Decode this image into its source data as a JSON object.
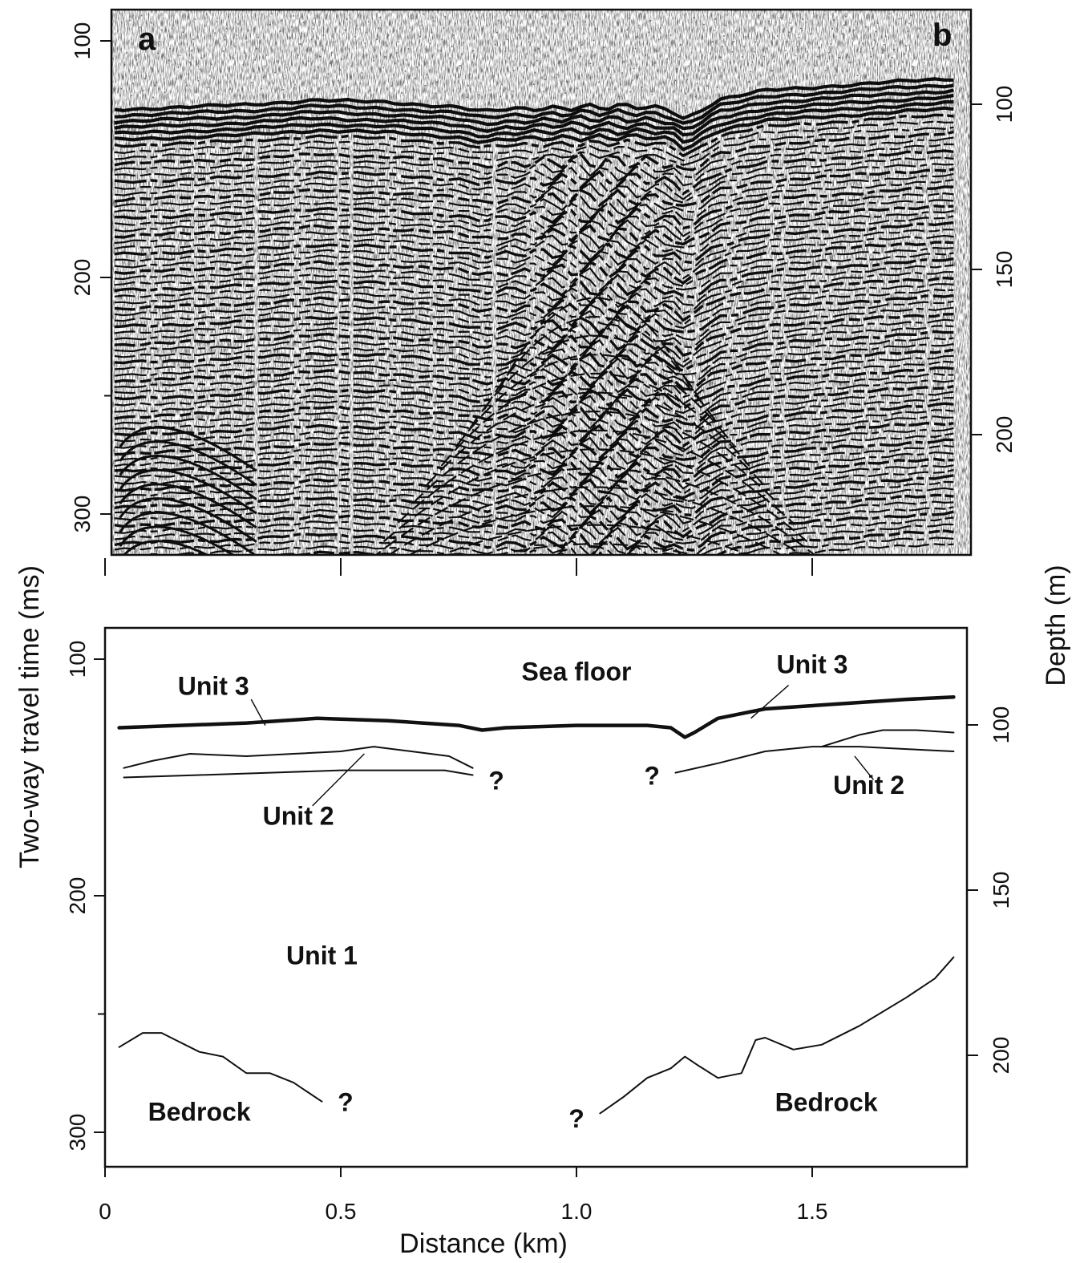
{
  "figure": {
    "panel_a_label": "a",
    "panel_b_label": "b",
    "left_axis_title": "Two-way travel time (ms)",
    "right_axis_title": "Depth (m)",
    "x_axis_title": "Distance (km)"
  },
  "chart_data": {
    "type": "line",
    "x_ticks": [
      "0",
      "0.5",
      "1.0",
      "1.5"
    ],
    "x_tick_values": [
      0,
      0.5,
      1.0,
      1.5
    ],
    "xlim": [
      0,
      1.82
    ],
    "left_ticks": [
      "100",
      "200",
      "300"
    ],
    "left_tick_values": [
      100,
      200,
      300
    ],
    "right_ticks": [
      "100",
      "150",
      "200"
    ],
    "right_tick_values": [
      100,
      150,
      200
    ],
    "ylim_ms": [
      325,
      85
    ],
    "grid": false,
    "panel_a": {
      "description_type": "seismic reflection profile image",
      "reflector_depths_ms": [
        130,
        150,
        170,
        200,
        250,
        265,
        300
      ]
    },
    "panel_b": {
      "annotations": [
        {
          "text": "Sea floor",
          "x": 1.0,
          "y": 109
        },
        {
          "text": "Unit 3",
          "x": 0.23,
          "y": 115
        },
        {
          "text": "Unit 3",
          "x": 1.5,
          "y": 106
        },
        {
          "text": "Unit 2",
          "x": 0.41,
          "y": 170
        },
        {
          "text": "Unit 2",
          "x": 1.62,
          "y": 157
        },
        {
          "text": "Unit 1",
          "x": 0.46,
          "y": 229
        },
        {
          "text": "Bedrock",
          "x": 0.2,
          "y": 295
        },
        {
          "text": "Bedrock",
          "x": 1.53,
          "y": 291
        },
        {
          "text": "?",
          "x": 0.83,
          "y": 155
        },
        {
          "text": "?",
          "x": 1.16,
          "y": 153
        },
        {
          "text": "?",
          "x": 0.51,
          "y": 291
        },
        {
          "text": "?",
          "x": 1.0,
          "y": 298
        }
      ],
      "series": [
        {
          "role": "sea-floor",
          "points": [
            [
              0.03,
              129
            ],
            [
              0.3,
              127
            ],
            [
              0.45,
              125
            ],
            [
              0.6,
              126
            ],
            [
              0.75,
              128
            ],
            [
              0.8,
              130
            ],
            [
              0.85,
              129
            ],
            [
              1.0,
              128
            ],
            [
              1.15,
              128
            ],
            [
              1.2,
              129
            ],
            [
              1.23,
              133
            ],
            [
              1.25,
              131
            ],
            [
              1.3,
              125
            ],
            [
              1.4,
              121
            ],
            [
              1.55,
              119
            ],
            [
              1.7,
              117
            ],
            [
              1.8,
              116
            ]
          ]
        },
        {
          "role": "unit2-top-left",
          "points": [
            [
              0.04,
              146
            ],
            [
              0.1,
              143
            ],
            [
              0.18,
              140
            ],
            [
              0.3,
              141
            ],
            [
              0.4,
              140
            ],
            [
              0.5,
              139
            ],
            [
              0.57,
              137
            ],
            [
              0.65,
              139
            ],
            [
              0.73,
              141
            ],
            [
              0.78,
              146
            ]
          ]
        },
        {
          "role": "unit2-base-left",
          "points": [
            [
              0.04,
              150
            ],
            [
              0.2,
              149
            ],
            [
              0.35,
              148
            ],
            [
              0.5,
              147
            ],
            [
              0.65,
              147
            ],
            [
              0.72,
              147
            ],
            [
              0.78,
              149
            ]
          ]
        },
        {
          "role": "unit2-base-right",
          "points": [
            [
              1.21,
              148
            ],
            [
              1.3,
              144
            ],
            [
              1.4,
              139
            ],
            [
              1.5,
              137
            ],
            [
              1.6,
              137
            ],
            [
              1.7,
              138
            ],
            [
              1.8,
              139
            ]
          ]
        },
        {
          "role": "unit2-top-right",
          "points": [
            [
              1.52,
              137
            ],
            [
              1.6,
              132
            ],
            [
              1.65,
              130
            ],
            [
              1.72,
              130
            ],
            [
              1.8,
              131
            ]
          ]
        },
        {
          "role": "bedrock-left",
          "points": [
            [
              0.03,
              264
            ],
            [
              0.08,
              258
            ],
            [
              0.12,
              258
            ],
            [
              0.15,
              261
            ],
            [
              0.2,
              266
            ],
            [
              0.25,
              268
            ],
            [
              0.3,
              275
            ],
            [
              0.35,
              275
            ],
            [
              0.4,
              279
            ],
            [
              0.46,
              287
            ]
          ]
        },
        {
          "role": "bedrock-right",
          "points": [
            [
              1.05,
              292
            ],
            [
              1.1,
              285
            ],
            [
              1.15,
              277
            ],
            [
              1.2,
              273
            ],
            [
              1.23,
              268
            ],
            [
              1.26,
              272
            ],
            [
              1.3,
              277
            ],
            [
              1.35,
              275
            ],
            [
              1.38,
              261
            ],
            [
              1.4,
              260
            ],
            [
              1.46,
              265
            ],
            [
              1.52,
              263
            ],
            [
              1.6,
              255
            ],
            [
              1.7,
              243
            ],
            [
              1.76,
              235
            ],
            [
              1.8,
              226
            ]
          ]
        }
      ]
    }
  }
}
